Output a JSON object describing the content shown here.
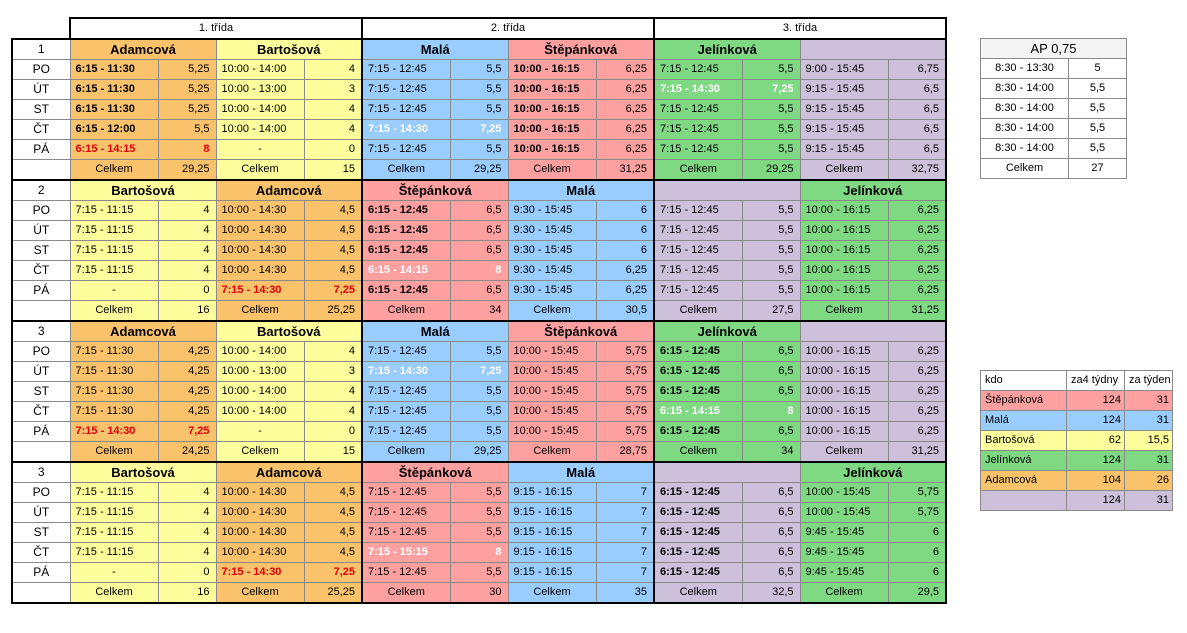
{
  "header": {
    "col1": "1. třída",
    "col2": "2. třída",
    "col3": "3. třída"
  },
  "weeks": [
    {
      "label": "1",
      "names": [
        "Adamcová",
        "Bartošová",
        "Malá",
        "Štěpánková",
        "Jelínková",
        ""
      ],
      "colors": [
        "o",
        "y",
        "bl",
        "p",
        "g",
        "v"
      ],
      "rows": [
        {
          "day": "PO",
          "cells": [
            [
              "6:15 - 11:30",
              "5,25",
              "b"
            ],
            [
              "10:00 - 14:00",
              "4",
              ""
            ],
            [
              "7:15 - 12:45",
              "5,5",
              ""
            ],
            [
              "10:00 - 16:15",
              "6,25",
              "hb"
            ],
            [
              "7:15 - 12:45",
              "5,5",
              ""
            ],
            [
              "9:00 - 15:45",
              "6,75",
              ""
            ]
          ]
        },
        {
          "day": "ÚT",
          "cells": [
            [
              "6:15 - 11:30",
              "5,25",
              "b"
            ],
            [
              "10:00 - 13:00",
              "3",
              ""
            ],
            [
              "7:15 - 12:45",
              "5,5",
              ""
            ],
            [
              "10:00 - 16:15",
              "6,25",
              "hb"
            ],
            [
              "7:15 - 14:30",
              "7,25",
              "w"
            ],
            [
              "9:15 - 15:45",
              "6,5",
              ""
            ]
          ]
        },
        {
          "day": "ST",
          "cells": [
            [
              "6:15 - 11:30",
              "5,25",
              "b"
            ],
            [
              "10:00 - 14:00",
              "4",
              ""
            ],
            [
              "7:15 - 12:45",
              "5,5",
              ""
            ],
            [
              "10:00 - 16:15",
              "6,25",
              "hb"
            ],
            [
              "7:15 - 12:45",
              "5,5",
              ""
            ],
            [
              "9:15 - 15:45",
              "6,5",
              ""
            ]
          ]
        },
        {
          "day": "ČT",
          "cells": [
            [
              "6:15 - 12:00",
              "5,5",
              "b"
            ],
            [
              "10:00 - 14:00",
              "4",
              ""
            ],
            [
              "7:15 - 14:30",
              "7,25",
              "w"
            ],
            [
              "10:00 - 16:15",
              "6,25",
              "hb"
            ],
            [
              "7:15 - 12:45",
              "5,5",
              ""
            ],
            [
              "9:15 - 15:45",
              "6,5",
              ""
            ]
          ]
        },
        {
          "day": "PÁ",
          "cells": [
            [
              "6:15 - 14:15",
              "8",
              "r"
            ],
            [
              "-",
              "0",
              ""
            ],
            [
              "7:15 - 12:45",
              "5,5",
              ""
            ],
            [
              "10:00 - 16:15",
              "6,25",
              "hb"
            ],
            [
              "7:15 - 12:45",
              "5,5",
              ""
            ],
            [
              "9:15 - 15:45",
              "6,5",
              ""
            ]
          ]
        }
      ],
      "totals": [
        "29,25",
        "15",
        "29,25",
        "31,25",
        "29,25",
        "32,75"
      ]
    },
    {
      "label": "2",
      "names": [
        "Bartošová",
        "Adamcová",
        "Štěpánková",
        "Malá",
        "",
        "Jelínková"
      ],
      "colors": [
        "y",
        "o",
        "p",
        "bl",
        "v",
        "g"
      ],
      "rows": [
        {
          "day": "PO",
          "cells": [
            [
              "7:15 - 11:15",
              "4",
              ""
            ],
            [
              "10:00 - 14:30",
              "4,5",
              ""
            ],
            [
              "6:15 - 12:45",
              "6,5",
              "b"
            ],
            [
              "9:30 - 15:45",
              "6",
              ""
            ],
            [
              "7:15 - 12:45",
              "5,5",
              ""
            ],
            [
              "10:00 - 16:15",
              "6,25",
              ""
            ]
          ]
        },
        {
          "day": "ÚT",
          "cells": [
            [
              "7:15 - 11:15",
              "4",
              ""
            ],
            [
              "10:00 - 14:30",
              "4,5",
              ""
            ],
            [
              "6:15 - 12:45",
              "6,5",
              "b"
            ],
            [
              "9:30 - 15:45",
              "6",
              ""
            ],
            [
              "7:15 - 12:45",
              "5,5",
              ""
            ],
            [
              "10:00 - 16:15",
              "6,25",
              ""
            ]
          ]
        },
        {
          "day": "ST",
          "cells": [
            [
              "7:15 - 11:15",
              "4",
              ""
            ],
            [
              "10:00 - 14:30",
              "4,5",
              ""
            ],
            [
              "6:15 - 12:45",
              "6,5",
              "b"
            ],
            [
              "9:30 - 15:45",
              "6",
              ""
            ],
            [
              "7:15 - 12:45",
              "5,5",
              ""
            ],
            [
              "10:00 - 16:15",
              "6,25",
              ""
            ]
          ]
        },
        {
          "day": "ČT",
          "cells": [
            [
              "7:15 - 11:15",
              "4",
              ""
            ],
            [
              "10:00 - 14:30",
              "4,5",
              ""
            ],
            [
              "6:15 - 14:15",
              "8",
              "w"
            ],
            [
              "9:30 - 15:45",
              "6,25",
              ""
            ],
            [
              "7:15 - 12:45",
              "5,5",
              ""
            ],
            [
              "10:00 - 16:15",
              "6,25",
              ""
            ]
          ]
        },
        {
          "day": "PÁ",
          "cells": [
            [
              "-",
              "0",
              ""
            ],
            [
              "7:15 - 14:30",
              "7,25",
              "r"
            ],
            [
              "6:15 - 12:45",
              "6,5",
              "b"
            ],
            [
              "9:30 - 15:45",
              "6,25",
              ""
            ],
            [
              "7:15 - 12:45",
              "5,5",
              ""
            ],
            [
              "10:00 - 16:15",
              "6,25",
              ""
            ]
          ]
        }
      ],
      "totals": [
        "16",
        "25,25",
        "34",
        "30,5",
        "27,5",
        "31,25"
      ]
    },
    {
      "label": "3",
      "names": [
        "Adamcová",
        "Bartošová",
        "Malá",
        "Štěpánková",
        "Jelínková",
        ""
      ],
      "colors": [
        "o",
        "y",
        "bl",
        "p",
        "g",
        "v"
      ],
      "rows": [
        {
          "day": "PO",
          "cells": [
            [
              "7:15 - 11:30",
              "4,25",
              ""
            ],
            [
              "10:00 - 14:00",
              "4",
              ""
            ],
            [
              "7:15 - 12:45",
              "5,5",
              ""
            ],
            [
              "10:00 - 15:45",
              "5,75",
              ""
            ],
            [
              "6:15 - 12:45",
              "6,5",
              "b"
            ],
            [
              "10:00 - 16:15",
              "6,25",
              ""
            ]
          ]
        },
        {
          "day": "ÚT",
          "cells": [
            [
              "7:15 - 11:30",
              "4,25",
              ""
            ],
            [
              "10:00 - 13:00",
              "3",
              ""
            ],
            [
              "7:15 - 14:30",
              "7,25",
              "w"
            ],
            [
              "10:00 - 15:45",
              "5,75",
              ""
            ],
            [
              "6:15 - 12:45",
              "6,5",
              "b"
            ],
            [
              "10:00 - 16:15",
              "6,25",
              ""
            ]
          ]
        },
        {
          "day": "ST",
          "cells": [
            [
              "7:15 - 11:30",
              "4,25",
              ""
            ],
            [
              "10:00 - 14:00",
              "4",
              ""
            ],
            [
              "7:15 - 12:45",
              "5,5",
              ""
            ],
            [
              "10:00 - 15:45",
              "5,75",
              ""
            ],
            [
              "6:15 - 12:45",
              "6,5",
              "b"
            ],
            [
              "10:00 - 16:15",
              "6,25",
              ""
            ]
          ]
        },
        {
          "day": "ČT",
          "cells": [
            [
              "7:15 - 11:30",
              "4,25",
              ""
            ],
            [
              "10:00 - 14:00",
              "4",
              ""
            ],
            [
              "7:15 - 12:45",
              "5,5",
              ""
            ],
            [
              "10:00 - 15:45",
              "5,75",
              ""
            ],
            [
              "6:15 - 14:15",
              "8",
              "w"
            ],
            [
              "10:00 - 16:15",
              "6,25",
              ""
            ]
          ]
        },
        {
          "day": "PÁ",
          "cells": [
            [
              "7:15 - 14:30",
              "7,25",
              "r"
            ],
            [
              "-",
              "0",
              ""
            ],
            [
              "7:15 - 12:45",
              "5,5",
              ""
            ],
            [
              "10:00 - 15:45",
              "5,75",
              ""
            ],
            [
              "6:15 - 12:45",
              "6,5",
              "b"
            ],
            [
              "10:00 - 16:15",
              "6,25",
              ""
            ]
          ]
        }
      ],
      "totals": [
        "24,25",
        "15",
        "29,25",
        "28,75",
        "34",
        "31,25"
      ]
    },
    {
      "label": "3",
      "names": [
        "Bartošová",
        "Adamcová",
        "Štěpánková",
        "Malá",
        "",
        "Jelínková"
      ],
      "colors": [
        "y",
        "o",
        "p",
        "bl",
        "v",
        "g"
      ],
      "rows": [
        {
          "day": "PO",
          "cells": [
            [
              "7:15 - 11:15",
              "4",
              ""
            ],
            [
              "10:00 - 14:30",
              "4,5",
              ""
            ],
            [
              "7:15 - 12:45",
              "5,5",
              ""
            ],
            [
              "9:15 - 16:15",
              "7",
              ""
            ],
            [
              "6:15 - 12:45",
              "6,5",
              "b"
            ],
            [
              "10:00 - 15:45",
              "5,75",
              ""
            ]
          ]
        },
        {
          "day": "ÚT",
          "cells": [
            [
              "7:15 - 11:15",
              "4",
              ""
            ],
            [
              "10:00 - 14:30",
              "4,5",
              ""
            ],
            [
              "7:15 - 12:45",
              "5,5",
              ""
            ],
            [
              "9:15 - 16:15",
              "7",
              ""
            ],
            [
              "6:15 - 12:45",
              "6,5",
              "b"
            ],
            [
              "10:00 - 15:45",
              "5,75",
              ""
            ]
          ]
        },
        {
          "day": "ST",
          "cells": [
            [
              "7:15 - 11:15",
              "4",
              ""
            ],
            [
              "10:00 - 14:30",
              "4,5",
              ""
            ],
            [
              "7:15 - 12:45",
              "5,5",
              ""
            ],
            [
              "9:15 - 16:15",
              "7",
              ""
            ],
            [
              "6:15 - 12:45",
              "6,5",
              "b"
            ],
            [
              "9:45 - 15:45",
              "6",
              ""
            ]
          ]
        },
        {
          "day": "ČT",
          "cells": [
            [
              "7:15 - 11:15",
              "4",
              ""
            ],
            [
              "10:00 - 14:30",
              "4,5",
              ""
            ],
            [
              "7:15 - 15:15",
              "8",
              "w"
            ],
            [
              "9:15 - 16:15",
              "7",
              ""
            ],
            [
              "6:15 - 12:45",
              "6,5",
              "b"
            ],
            [
              "9:45 - 15:45",
              "6",
              ""
            ]
          ]
        },
        {
          "day": "PÁ",
          "cells": [
            [
              "-",
              "0",
              ""
            ],
            [
              "7:15 - 14:30",
              "7,25",
              "r"
            ],
            [
              "7:15 - 12:45",
              "5,5",
              ""
            ],
            [
              "9:15 - 16:15",
              "7",
              ""
            ],
            [
              "6:15 - 12:45",
              "6,5",
              "b"
            ],
            [
              "9:45 - 15:45",
              "6",
              ""
            ]
          ]
        }
      ],
      "totals": [
        "16",
        "25,25",
        "30",
        "35",
        "32,5",
        "29,5"
      ]
    }
  ],
  "total_label": "Celkem",
  "ap": {
    "title": "AP 0,75",
    "rows": [
      [
        "8:30 - 13:30",
        "5"
      ],
      [
        "8:30 - 14:00",
        "5,5"
      ],
      [
        "8:30 - 14:00",
        "5,5"
      ],
      [
        "8:30 - 14:00",
        "5,5"
      ],
      [
        "8:30 - 14:00",
        "5,5"
      ]
    ],
    "total_label": "Celkem",
    "total": "27"
  },
  "summary": {
    "headers": [
      "kdo",
      "za4 týdny",
      "za týden"
    ],
    "rows": [
      {
        "name": "Štěpánková",
        "four": "124",
        "week": "31",
        "color": "p"
      },
      {
        "name": "Malá",
        "four": "124",
        "week": "31",
        "color": "bl"
      },
      {
        "name": "Bartošová",
        "four": "62",
        "week": "15,5",
        "color": "y"
      },
      {
        "name": "Jelínková",
        "four": "124",
        "week": "31",
        "color": "g"
      },
      {
        "name": "Adamcová",
        "four": "104",
        "week": "26",
        "color": "o"
      },
      {
        "name": "",
        "four": "124",
        "week": "31",
        "color": "v"
      }
    ]
  },
  "colors": {
    "o": "#f9c26b",
    "y": "#fefe9c",
    "bl": "#99ccff",
    "p": "#ffa0a0",
    "g": "#7fd882",
    "v": "#ccc0da",
    "red": "#e00000"
  }
}
